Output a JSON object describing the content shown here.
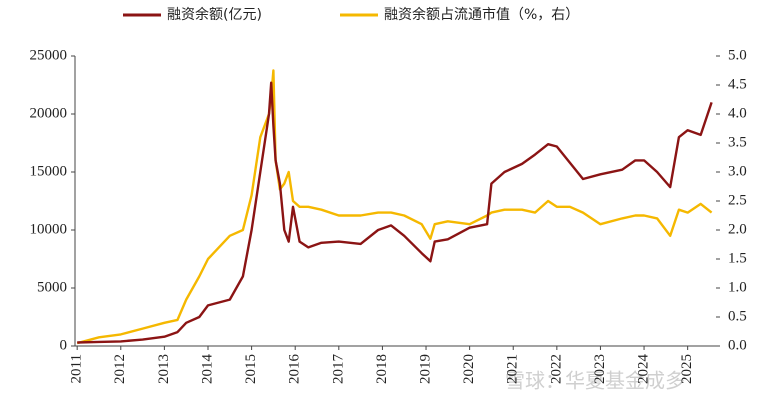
{
  "chart_data": {
    "type": "line",
    "x": [
      2011.0,
      2011.5,
      2012.0,
      2012.5,
      2013.0,
      2013.3,
      2013.5,
      2013.8,
      2014.0,
      2014.5,
      2014.8,
      2015.0,
      2015.2,
      2015.4,
      2015.45,
      2015.5,
      2015.55,
      2015.65,
      2015.75,
      2015.85,
      2015.95,
      2016.1,
      2016.3,
      2016.6,
      2017.0,
      2017.5,
      2017.9,
      2018.2,
      2018.5,
      2018.9,
      2019.1,
      2019.2,
      2019.5,
      2020.0,
      2020.4,
      2020.5,
      2020.8,
      2021.2,
      2021.5,
      2021.8,
      2022.0,
      2022.3,
      2022.6,
      2023.0,
      2023.5,
      2023.8,
      2024.0,
      2024.3,
      2024.6,
      2024.8,
      2025.0,
      2025.3,
      2025.55
    ],
    "series": [
      {
        "name": "融资余额(亿元)",
        "color": "#8b1414",
        "values": [
          300,
          350,
          400,
          550,
          800,
          1200,
          2000,
          2500,
          3500,
          4000,
          6000,
          10000,
          15000,
          20000,
          22700,
          19000,
          16000,
          14000,
          10000,
          9000,
          12000,
          9000,
          8500,
          8900,
          9000,
          8800,
          10000,
          10400,
          9500,
          8000,
          7300,
          9000,
          9200,
          10200,
          10500,
          14000,
          15000,
          15700,
          16500,
          17400,
          17200,
          15800,
          14400,
          14800,
          15200,
          16000,
          16000,
          15000,
          13700,
          18000,
          18600,
          18200,
          21000
        ]
      },
      {
        "name": "融资余额占流通市值（%，右）",
        "color": "#f5b800",
        "axis": "y2",
        "values": [
          0.05,
          0.15,
          0.2,
          0.3,
          0.4,
          0.45,
          0.8,
          1.2,
          1.5,
          1.9,
          2.0,
          2.6,
          3.6,
          4.0,
          4.3,
          4.75,
          3.2,
          2.7,
          2.8,
          3.0,
          2.5,
          2.4,
          2.4,
          2.35,
          2.25,
          2.25,
          2.3,
          2.3,
          2.25,
          2.1,
          1.85,
          2.1,
          2.15,
          2.1,
          2.25,
          2.3,
          2.35,
          2.35,
          2.3,
          2.5,
          2.4,
          2.4,
          2.3,
          2.1,
          2.2,
          2.25,
          2.25,
          2.2,
          1.9,
          2.35,
          2.3,
          2.45,
          2.3
        ]
      }
    ],
    "xlim": [
      2010.95,
      2025.65
    ],
    "xticks": [
      2011,
      2012,
      2013,
      2014,
      2015,
      2016,
      2017,
      2018,
      2019,
      2020,
      2021,
      2022,
      2023,
      2024,
      2025
    ],
    "ylim": [
      0,
      25000
    ],
    "yticks": [
      0,
      5000,
      10000,
      15000,
      20000,
      25000
    ],
    "y2lim": [
      0,
      5
    ],
    "y2ticks": [
      {
        "value": 0,
        "label": "0.0"
      },
      0.5,
      {
        "value": 1,
        "label": "1.0"
      },
      1.5,
      {
        "value": 2,
        "label": "2.0"
      },
      2.5,
      {
        "value": 3,
        "label": "3.0"
      },
      3.5,
      {
        "value": 4,
        "label": "4.0"
      },
      4.5,
      {
        "value": 5,
        "label": "5.0"
      }
    ],
    "legend": "top",
    "watermark": "雪球：华夏基金成多"
  }
}
